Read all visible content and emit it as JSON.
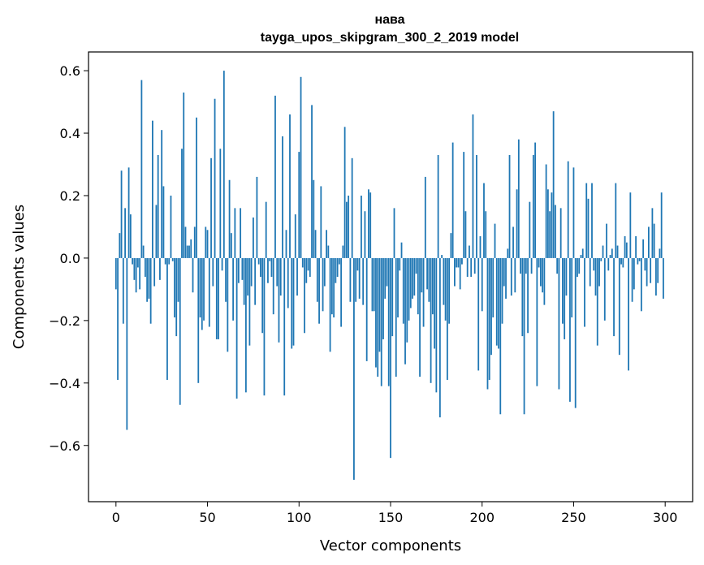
{
  "chart_data": {
    "type": "bar",
    "title": "нава",
    "subtitle": "tayga_upos_skipgram_300_2_2019 model",
    "xlabel": "Vector components",
    "ylabel": "Components values",
    "xlim": [
      -15,
      315
    ],
    "ylim": [
      -0.78,
      0.66
    ],
    "xticks": [
      0,
      50,
      100,
      150,
      200,
      250,
      300
    ],
    "xtick_labels": [
      "0",
      "50",
      "100",
      "150",
      "200",
      "250",
      "300"
    ],
    "yticks": [
      -0.6,
      -0.4,
      -0.2,
      0.0,
      0.2,
      0.4,
      0.6
    ],
    "ytick_labels": [
      "−0.6",
      "−0.4",
      "−0.2",
      "0.0",
      "0.2",
      "0.4",
      "0.6"
    ],
    "bar_color": "#1f77b4",
    "x": [
      0,
      1,
      2,
      3,
      4,
      5,
      6,
      7,
      8,
      9,
      10,
      11,
      12,
      13,
      14,
      15,
      16,
      17,
      18,
      19,
      20,
      21,
      22,
      23,
      24,
      25,
      26,
      27,
      28,
      29,
      30,
      31,
      32,
      33,
      34,
      35,
      36,
      37,
      38,
      39,
      40,
      41,
      42,
      43,
      44,
      45,
      46,
      47,
      48,
      49,
      50,
      51,
      52,
      53,
      54,
      55,
      56,
      57,
      58,
      59,
      60,
      61,
      62,
      63,
      64,
      65,
      66,
      67,
      68,
      69,
      70,
      71,
      72,
      73,
      74,
      75,
      76,
      77,
      78,
      79,
      80,
      81,
      82,
      83,
      84,
      85,
      86,
      87,
      88,
      89,
      90,
      91,
      92,
      93,
      94,
      95,
      96,
      97,
      98,
      99,
      100,
      101,
      102,
      103,
      104,
      105,
      106,
      107,
      108,
      109,
      110,
      111,
      112,
      113,
      114,
      115,
      116,
      117,
      118,
      119,
      120,
      121,
      122,
      123,
      124,
      125,
      126,
      127,
      128,
      129,
      130,
      131,
      132,
      133,
      134,
      135,
      136,
      137,
      138,
      139,
      140,
      141,
      142,
      143,
      144,
      145,
      146,
      147,
      148,
      149,
      150,
      151,
      152,
      153,
      154,
      155,
      156,
      157,
      158,
      159,
      160,
      161,
      162,
      163,
      164,
      165,
      166,
      167,
      168,
      169,
      170,
      171,
      172,
      173,
      174,
      175,
      176,
      177,
      178,
      179,
      180,
      181,
      182,
      183,
      184,
      185,
      186,
      187,
      188,
      189,
      190,
      191,
      192,
      193,
      194,
      195,
      196,
      197,
      198,
      199,
      200,
      201,
      202,
      203,
      204,
      205,
      206,
      207,
      208,
      209,
      210,
      211,
      212,
      213,
      214,
      215,
      216,
      217,
      218,
      219,
      220,
      221,
      222,
      223,
      224,
      225,
      226,
      227,
      228,
      229,
      230,
      231,
      232,
      233,
      234,
      235,
      236,
      237,
      238,
      239,
      240,
      241,
      242,
      243,
      244,
      245,
      246,
      247,
      248,
      249,
      250,
      251,
      252,
      253,
      254,
      255,
      256,
      257,
      258,
      259,
      260,
      261,
      262,
      263,
      264,
      265,
      266,
      267,
      268,
      269,
      270,
      271,
      272,
      273,
      274,
      275,
      276,
      277,
      278,
      279,
      280,
      281,
      282,
      283,
      284,
      285,
      286,
      287,
      288,
      289,
      290,
      291,
      292,
      293,
      294,
      295,
      296,
      297,
      298,
      299
    ],
    "values": [
      -0.1,
      -0.39,
      0.08,
      0.28,
      -0.21,
      0.16,
      -0.55,
      0.29,
      0.14,
      -0.02,
      -0.07,
      -0.11,
      -0.03,
      -0.1,
      0.57,
      0.04,
      -0.06,
      -0.14,
      -0.13,
      -0.21,
      0.44,
      -0.09,
      0.17,
      0.33,
      -0.07,
      0.41,
      0.23,
      -0.02,
      -0.39,
      -0.02,
      0.2,
      -0.01,
      -0.19,
      -0.25,
      -0.14,
      -0.47,
      0.35,
      0.53,
      0.1,
      0.04,
      0.04,
      0.06,
      -0.11,
      0.1,
      0.45,
      -0.4,
      -0.19,
      -0.23,
      -0.2,
      0.1,
      0.09,
      -0.22,
      0.32,
      -0.09,
      0.51,
      -0.26,
      -0.26,
      0.35,
      -0.04,
      0.6,
      -0.14,
      -0.3,
      0.25,
      0.08,
      -0.2,
      0.16,
      -0.45,
      -0.08,
      0.16,
      -0.07,
      -0.15,
      -0.43,
      -0.12,
      -0.28,
      -0.09,
      0.13,
      -0.15,
      0.26,
      -0.02,
      -0.06,
      -0.24,
      -0.44,
      0.18,
      -0.08,
      -0.01,
      -0.06,
      -0.18,
      0.52,
      -0.09,
      -0.27,
      -0.12,
      0.39,
      -0.44,
      0.09,
      -0.16,
      0.46,
      -0.29,
      -0.28,
      0.14,
      -0.12,
      0.34,
      0.58,
      -0.03,
      -0.24,
      -0.08,
      -0.04,
      -0.06,
      0.49,
      0.25,
      0.09,
      -0.14,
      -0.21,
      0.23,
      -0.17,
      -0.09,
      0.09,
      0.04,
      -0.3,
      -0.18,
      -0.19,
      -0.08,
      -0.06,
      -0.02,
      -0.22,
      0.04,
      0.42,
      0.18,
      0.2,
      -0.14,
      0.32,
      -0.71,
      -0.14,
      -0.04,
      -0.13,
      0.2,
      -0.15,
      0.15,
      -0.33,
      0.22,
      0.21,
      -0.17,
      -0.17,
      -0.35,
      -0.38,
      -0.3,
      -0.41,
      -0.26,
      -0.13,
      -0.09,
      -0.41,
      -0.64,
      -0.25,
      0.16,
      -0.38,
      -0.19,
      -0.04,
      0.05,
      -0.21,
      -0.34,
      -0.27,
      -0.2,
      -0.16,
      -0.13,
      -0.12,
      -0.05,
      -0.18,
      -0.38,
      -0.11,
      -0.22,
      0.26,
      -0.1,
      -0.14,
      -0.4,
      -0.18,
      -0.29,
      -0.43,
      0.33,
      -0.51,
      0.01,
      -0.15,
      -0.2,
      -0.39,
      -0.21,
      0.08,
      0.37,
      -0.09,
      -0.03,
      -0.03,
      -0.1,
      -0.02,
      0.34,
      0.15,
      -0.06,
      0.04,
      -0.06,
      0.46,
      -0.05,
      0.33,
      -0.36,
      0.07,
      -0.17,
      0.24,
      0.15,
      -0.42,
      -0.39,
      -0.31,
      -0.19,
      0.11,
      -0.28,
      -0.29,
      -0.5,
      -0.21,
      -0.09,
      -0.13,
      0.03,
      0.33,
      -0.12,
      0.1,
      -0.11,
      0.22,
      0.38,
      -0.05,
      -0.25,
      -0.5,
      -0.05,
      -0.24,
      0.18,
      -0.05,
      0.33,
      0.37,
      -0.41,
      -0.03,
      -0.09,
      -0.11,
      -0.15,
      0.3,
      0.22,
      0.15,
      0.21,
      0.47,
      0.17,
      -0.05,
      -0.42,
      0.16,
      -0.21,
      -0.26,
      -0.12,
      0.31,
      -0.46,
      -0.19,
      0.29,
      -0.48,
      -0.06,
      -0.05,
      0.01,
      0.03,
      -0.22,
      0.24,
      0.19,
      -0.09,
      0.24,
      -0.04,
      -0.12,
      -0.28,
      -0.09,
      -0.01,
      0.04,
      -0.2,
      0.11,
      -0.04,
      0.01,
      0.03,
      -0.25,
      0.24,
      0.04,
      -0.31,
      -0.02,
      -0.03,
      0.07,
      0.05,
      -0.36,
      0.21,
      -0.14,
      -0.1,
      0.07,
      -0.02,
      -0.01,
      -0.17,
      0.06,
      -0.04,
      -0.09,
      0.1,
      -0.08,
      0.16,
      0.11,
      -0.12,
      -0.08,
      0.03,
      0.21,
      -0.13
    ]
  }
}
